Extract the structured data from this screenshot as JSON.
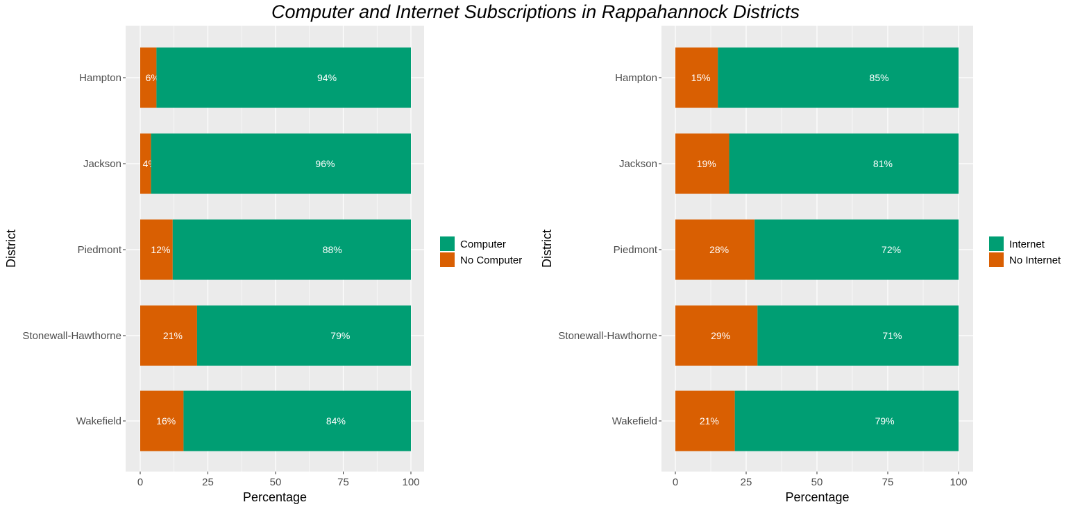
{
  "title": "Computer and Internet Subscriptions in Rappahannock Districts",
  "chart_data": [
    {
      "type": "bar",
      "orientation": "horizontal",
      "stacked": true,
      "categories": [
        "Hampton",
        "Jackson",
        "Piedmont",
        "Stonewall-Hawthorne",
        "Wakefield"
      ],
      "series": [
        {
          "name": "No Computer",
          "values": [
            6,
            4,
            12,
            21,
            16
          ],
          "labels": [
            "6%",
            "4%",
            "12%",
            "21%",
            "16%"
          ],
          "color": "#d95f02"
        },
        {
          "name": "Computer",
          "values": [
            94,
            96,
            88,
            79,
            84
          ],
          "labels": [
            "94%",
            "96%",
            "88%",
            "79%",
            "84%"
          ],
          "color": "#009e73"
        }
      ],
      "legend": [
        "Computer",
        "No Computer"
      ],
      "xlabel": "Percentage",
      "ylabel": "District",
      "xlim": [
        0,
        100
      ],
      "xticks": [
        "0",
        "25",
        "50",
        "75",
        "100"
      ],
      "grid": true,
      "legend_position": "right"
    },
    {
      "type": "bar",
      "orientation": "horizontal",
      "stacked": true,
      "categories": [
        "Hampton",
        "Jackson",
        "Piedmont",
        "Stonewall-Hawthorne",
        "Wakefield"
      ],
      "series": [
        {
          "name": "No Internet",
          "values": [
            15,
            19,
            28,
            29,
            21
          ],
          "labels": [
            "15%",
            "19%",
            "28%",
            "29%",
            "21%"
          ],
          "color": "#d95f02"
        },
        {
          "name": "Internet",
          "values": [
            85,
            81,
            72,
            71,
            79
          ],
          "labels": [
            "85%",
            "81%",
            "72%",
            "71%",
            "79%"
          ],
          "color": "#009e73"
        }
      ],
      "legend": [
        "Internet",
        "No Internet"
      ],
      "xlabel": "Percentage",
      "ylabel": "District",
      "xlim": [
        0,
        100
      ],
      "xticks": [
        "0",
        "25",
        "50",
        "75",
        "100"
      ],
      "grid": true,
      "legend_position": "right"
    }
  ]
}
